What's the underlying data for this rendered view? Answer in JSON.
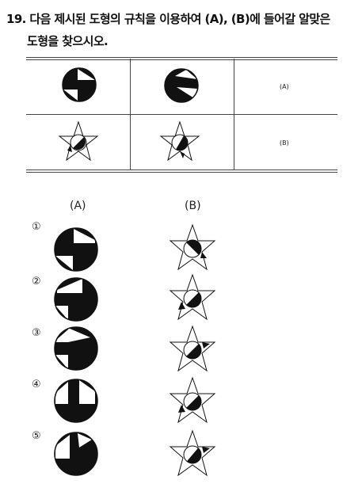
{
  "question": {
    "line1": "19. 다음 제시된 도형의 규칙을 이용하여 (A), (B)에 들어갈 알맞은",
    "line2": "도형을 찾으시오."
  },
  "table": {
    "answer_labels": [
      "(A)",
      "(B)"
    ]
  },
  "choices": {
    "header_a": "(A)",
    "header_b": "(B)",
    "numbers": [
      "①",
      "②",
      "③",
      "④",
      "⑤"
    ]
  },
  "colors": {
    "ink": "#111111",
    "paper": "#ffffff",
    "rule": "#444444"
  }
}
